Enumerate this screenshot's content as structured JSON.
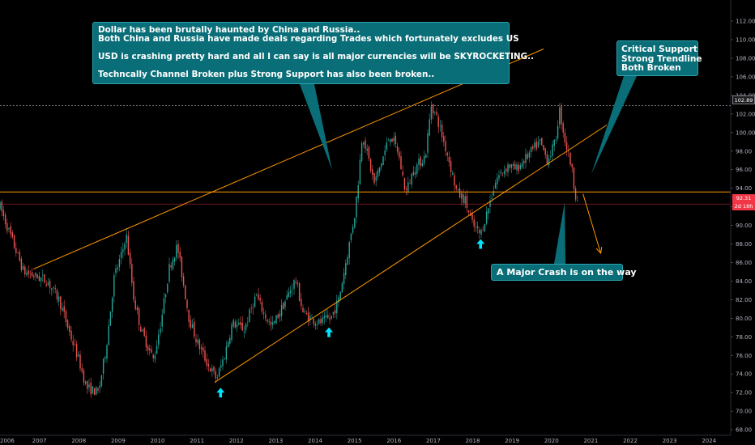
{
  "chart_data": {
    "type": "line",
    "title": "",
    "xlabel": "",
    "ylabel": "",
    "series_name": "",
    "ylim": [
      67.4,
      113.4
    ],
    "xlim": [
      2006.0,
      2024.55
    ],
    "x_ticks": [
      "2006",
      "2007",
      "2008",
      "2009",
      "2010",
      "2011",
      "2012",
      "2013",
      "2014",
      "2015",
      "2016",
      "2017",
      "2018",
      "2019",
      "2020",
      "2021",
      "2022",
      "2023",
      "2024"
    ],
    "y_ticks": [
      "68.00",
      "70.00",
      "72.00",
      "74.00",
      "76.00",
      "78.00",
      "80.00",
      "82.00",
      "84.00",
      "86.00",
      "88.00",
      "90.00",
      "92.00",
      "94.00",
      "96.00",
      "98.00",
      "100.00",
      "102.00",
      "104.00",
      "106.00",
      "108.00",
      "110.00",
      "112.00"
    ],
    "price_path": [
      [
        2006.0,
        92.0
      ],
      [
        2006.3,
        88.5
      ],
      [
        2006.6,
        85.0
      ],
      [
        2006.9,
        84.5
      ],
      [
        2007.2,
        84.0
      ],
      [
        2007.5,
        82.0
      ],
      [
        2007.8,
        78.0
      ],
      [
        2008.0,
        75.5
      ],
      [
        2008.2,
        72.5
      ],
      [
        2008.5,
        72.0
      ],
      [
        2008.7,
        77.0
      ],
      [
        2008.9,
        84.5
      ],
      [
        2009.1,
        87.0
      ],
      [
        2009.2,
        89.2
      ],
      [
        2009.4,
        82.0
      ],
      [
        2009.6,
        78.5
      ],
      [
        2009.9,
        75.5
      ],
      [
        2010.1,
        80.0
      ],
      [
        2010.3,
        85.5
      ],
      [
        2010.5,
        87.8
      ],
      [
        2010.8,
        80.0
      ],
      [
        2011.0,
        77.5
      ],
      [
        2011.3,
        74.8
      ],
      [
        2011.5,
        73.5
      ],
      [
        2011.7,
        76.0
      ],
      [
        2011.9,
        79.5
      ],
      [
        2012.2,
        78.8
      ],
      [
        2012.5,
        82.5
      ],
      [
        2012.7,
        80.5
      ],
      [
        2012.9,
        79.0
      ],
      [
        2013.2,
        81.5
      ],
      [
        2013.5,
        84.2
      ],
      [
        2013.7,
        80.5
      ],
      [
        2013.9,
        80.0
      ],
      [
        2014.1,
        79.5
      ],
      [
        2014.4,
        80.0
      ],
      [
        2014.6,
        82.0
      ],
      [
        2014.8,
        86.5
      ],
      [
        2015.0,
        91.0
      ],
      [
        2015.1,
        95.0
      ],
      [
        2015.2,
        100.0
      ],
      [
        2015.5,
        94.5
      ],
      [
        2015.7,
        97.0
      ],
      [
        2015.9,
        99.8
      ],
      [
        2016.1,
        98.0
      ],
      [
        2016.3,
        93.5
      ],
      [
        2016.5,
        96.0
      ],
      [
        2016.8,
        97.5
      ],
      [
        2016.95,
        103.0
      ],
      [
        2017.1,
        101.5
      ],
      [
        2017.4,
        97.0
      ],
      [
        2017.6,
        93.5
      ],
      [
        2017.8,
        92.8
      ],
      [
        2018.0,
        90.0
      ],
      [
        2018.2,
        89.0
      ],
      [
        2018.4,
        92.0
      ],
      [
        2018.6,
        95.0
      ],
      [
        2018.9,
        96.5
      ],
      [
        2019.1,
        96.0
      ],
      [
        2019.4,
        97.5
      ],
      [
        2019.7,
        99.0
      ],
      [
        2019.9,
        97.0
      ],
      [
        2020.1,
        99.0
      ],
      [
        2020.2,
        102.5
      ],
      [
        2020.35,
        99.0
      ],
      [
        2020.5,
        96.5
      ],
      [
        2020.6,
        93.5
      ],
      [
        2020.7,
        92.3
      ]
    ],
    "support_lows": [
      [
        2011.55,
        73.2
      ],
      [
        2014.35,
        79.3
      ],
      [
        2018.15,
        88.6
      ]
    ],
    "resistance_highs": [
      [
        2009.2,
        89.3
      ],
      [
        2016.95,
        103.5
      ]
    ],
    "lines": {
      "upper_channel": [
        [
          2006.85,
          85.3
        ],
        [
          2019.8,
          109.0
        ]
      ],
      "lower_support": [
        [
          2011.45,
          73.1
        ],
        [
          2021.4,
          100.8
        ]
      ],
      "horizontal_support": 93.6,
      "current_price_line": 92.3,
      "high_line": 102.89
    },
    "projection": [
      [
        2020.8,
        93.4
      ],
      [
        2021.25,
        87.0
      ]
    ],
    "arrow_marks": [
      {
        "x": 2011.6,
        "y": 72.0
      },
      {
        "x": 2014.35,
        "y": 78.5
      },
      {
        "x": 2018.2,
        "y": 88.0
      }
    ],
    "price_badges": {
      "current": "92.31",
      "countdown": "2d 18h",
      "high": "102.89"
    },
    "annotations": {
      "main": [
        "Dollar has been brutally haunted by China and Russia..",
        "Both China and Russia have made deals regarding Trades which fortunately excludes US",
        "USD is crashing pretty hard and all I can say is all major currencies will be SKYROCKETING..",
        "Techncally Channel Broken plus Strong Support has also been broken.."
      ],
      "support": [
        "Critical Support",
        "Strong Trendline",
        "Both Broken"
      ],
      "crash": "A Major Crash is on the way"
    },
    "colors": {
      "background": "#000000",
      "up": "#26a69a",
      "down": "#ef5350",
      "trendline": "#ff9800",
      "note": "#0a6e78",
      "arrow": "#00e5ff"
    }
  }
}
